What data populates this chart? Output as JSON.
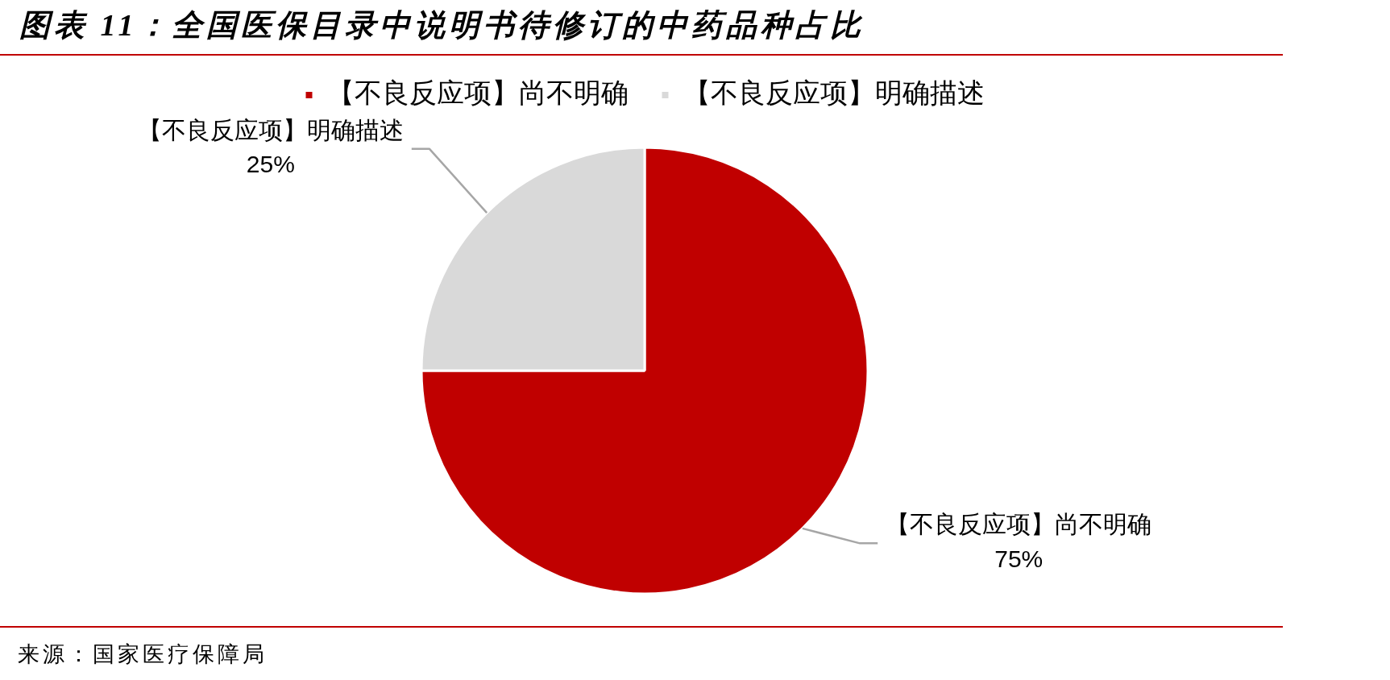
{
  "chart_data": {
    "type": "pie",
    "title": "图表 11：全国医保目录中说明书待修订的中药品种占比",
    "categories": [
      "【不良反应项】尚不明确",
      "【不良反应项】明确描述"
    ],
    "values": [
      75,
      25
    ],
    "colors": [
      "#c00000",
      "#d9d9d9"
    ],
    "value_labels": [
      "75%",
      "25%"
    ],
    "legend": "top",
    "annotations": [
      "来源：国家医疗保障局"
    ]
  }
}
